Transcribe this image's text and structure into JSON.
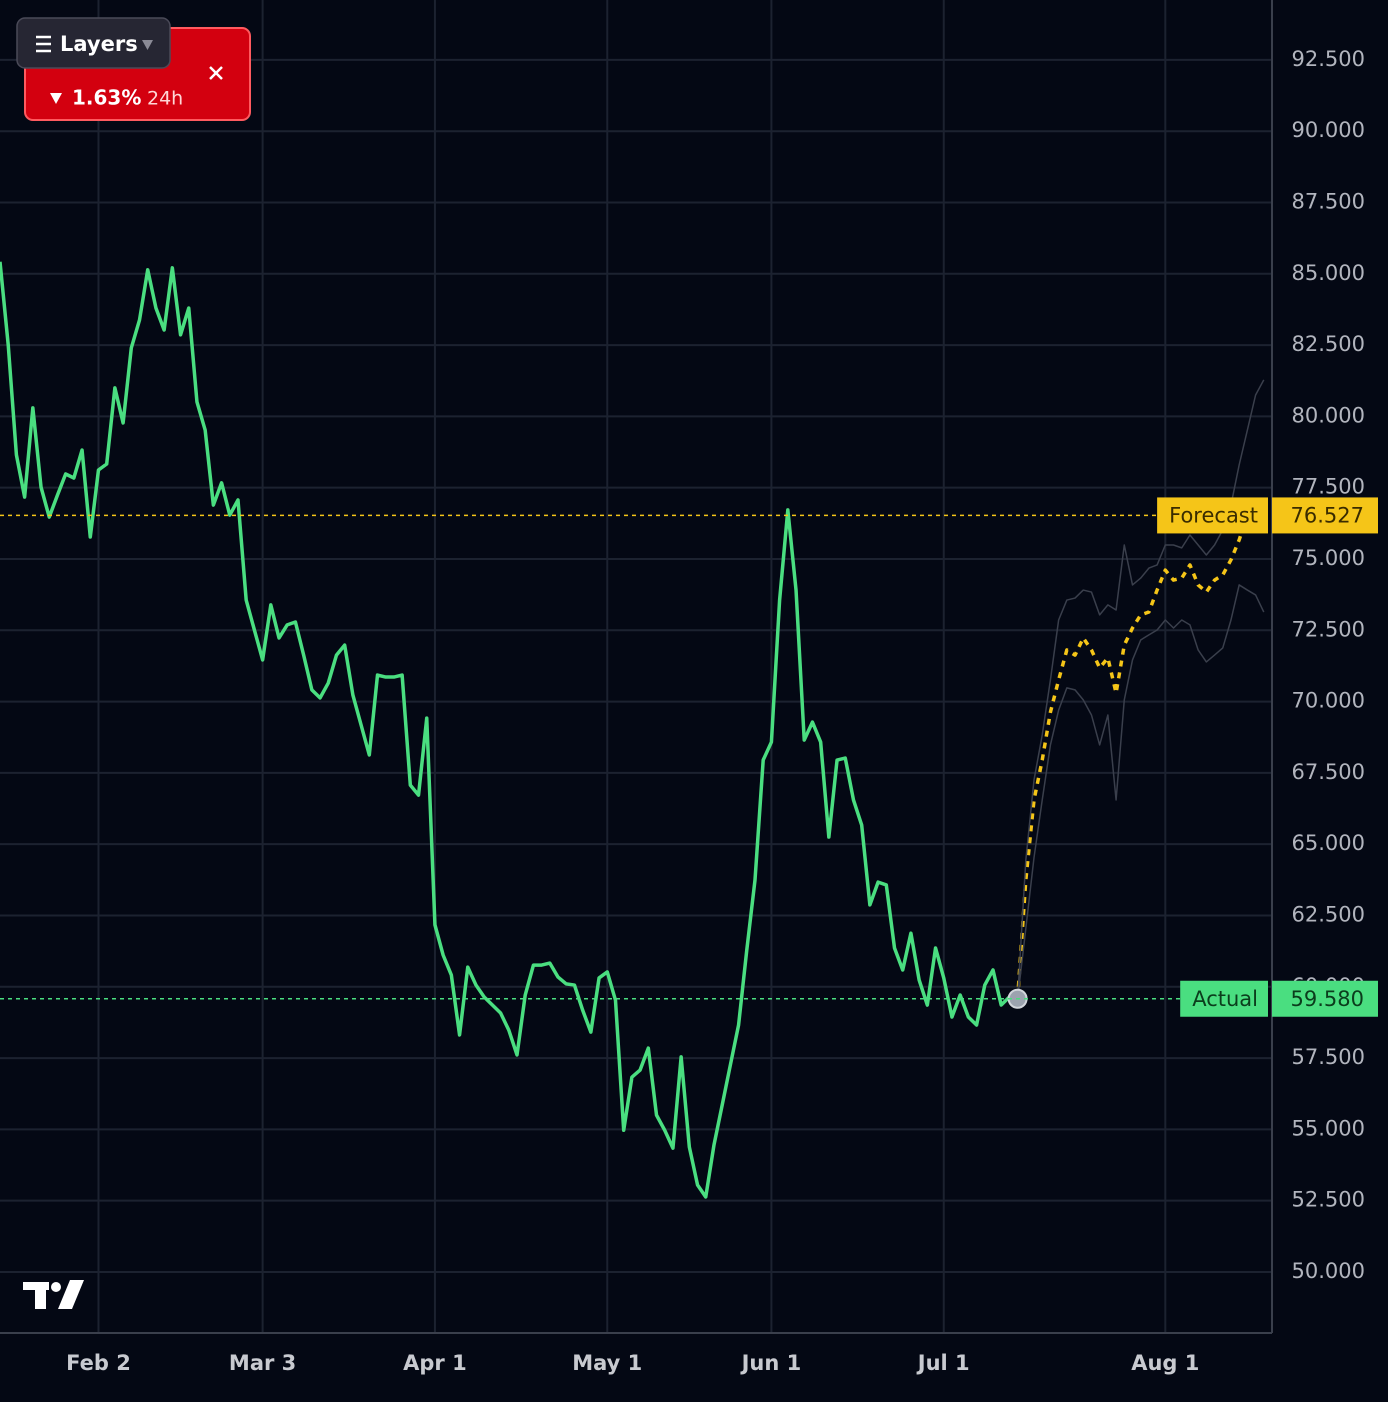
{
  "chart_data": {
    "type": "line",
    "xlim": [
      0,
      155
    ],
    "xticks": [
      {
        "value": 12,
        "label": "Feb 2"
      },
      {
        "value": 32,
        "label": "Mar 3"
      },
      {
        "value": 53,
        "label": "Apr 1"
      },
      {
        "value": 74,
        "label": "May 1"
      },
      {
        "value": 94,
        "label": "Jun 1"
      },
      {
        "value": 115,
        "label": "Jul 1"
      },
      {
        "value": 142,
        "label": "Aug 1"
      }
    ],
    "ylim": [
      47.86,
      94.6
    ],
    "yticks": [
      {
        "value": 50,
        "label": "50.000"
      },
      {
        "value": 52.5,
        "label": "52.500"
      },
      {
        "value": 55,
        "label": "55.000"
      },
      {
        "value": 57.5,
        "label": "57.500"
      },
      {
        "value": 60,
        "label": "60.000"
      },
      {
        "value": 62.5,
        "label": "62.500"
      },
      {
        "value": 65,
        "label": "65.000"
      },
      {
        "value": 67.5,
        "label": "67.500"
      },
      {
        "value": 70,
        "label": "70.000"
      },
      {
        "value": 72.5,
        "label": "72.500"
      },
      {
        "value": 75,
        "label": "75.000"
      },
      {
        "value": 77.5,
        "label": "77.500"
      },
      {
        "value": 80,
        "label": "80.000"
      },
      {
        "value": 82.5,
        "label": "82.500"
      },
      {
        "value": 85,
        "label": "85.000"
      },
      {
        "value": 87.5,
        "label": "87.500"
      },
      {
        "value": 90,
        "label": "90.000"
      },
      {
        "value": 92.5,
        "label": "92.500"
      }
    ],
    "grid": true,
    "series": [
      {
        "name": "Actual",
        "color": "#4ade80",
        "style": "solid",
        "values": [
          85.42,
          82.51,
          78.65,
          77.17,
          80.3,
          77.52,
          76.47,
          77.24,
          77.98,
          77.84,
          78.82,
          75.77,
          78.12,
          78.33,
          81.0,
          79.77,
          82.4,
          83.38,
          85.14,
          83.8,
          83.03,
          85.21,
          82.86,
          83.8,
          80.51,
          79.52,
          76.89,
          77.67,
          76.54,
          77.07,
          73.56,
          72.51,
          71.46,
          73.39,
          72.23,
          72.69,
          72.79,
          71.63,
          70.41,
          70.13,
          70.65,
          71.63,
          71.98,
          70.23,
          69.18,
          68.13,
          70.93,
          70.86,
          70.86,
          70.93,
          67.07,
          66.72,
          69.42,
          62.17,
          61.11,
          60.41,
          58.31,
          60.69,
          60.06,
          59.64,
          59.36,
          59.08,
          58.48,
          57.61,
          59.71,
          60.76,
          60.76,
          60.83,
          60.34,
          60.1,
          60.06,
          59.18,
          58.41,
          60.31,
          60.52,
          59.53,
          54.97,
          56.83,
          57.08,
          57.85,
          55.5,
          54.97,
          54.34,
          57.54,
          54.38,
          53.05,
          52.63,
          54.45,
          55.85,
          57.26,
          58.66,
          61.29,
          63.74,
          67.95,
          68.58,
          73.56,
          76.72,
          73.91,
          68.65,
          69.28,
          68.58,
          65.25,
          67.95,
          68.02,
          66.55,
          65.67,
          62.87,
          63.67,
          63.57,
          61.36,
          60.59,
          61.88,
          60.24,
          59.36,
          61.36,
          60.31,
          58.94,
          59.71,
          58.94,
          58.66,
          60.06,
          60.59,
          59.36,
          59.64,
          59.58
        ]
      },
      {
        "name": "Forecast",
        "color": "#f5c518",
        "style": "dotted",
        "x": [
          124,
          125,
          126,
          127,
          128,
          129,
          130,
          131,
          132,
          133,
          134,
          135,
          136,
          137,
          138,
          139,
          140,
          141,
          142,
          143,
          144,
          145,
          146,
          147,
          148,
          149,
          150,
          151,
          152
        ],
        "values": [
          59.58,
          63.74,
          66.55,
          67.95,
          69.63,
          70.76,
          71.81,
          71.63,
          72.23,
          71.81,
          71.18,
          71.53,
          70.3,
          71.98,
          72.58,
          73.04,
          73.14,
          73.91,
          74.61,
          74.26,
          74.33,
          74.79,
          74.09,
          73.84,
          74.26,
          74.44,
          74.97,
          75.67,
          76.527
        ]
      },
      {
        "color": "#3a3f4c",
        "style": "thin",
        "x": [
          124,
          125,
          126,
          127,
          128,
          129,
          130,
          131,
          132,
          133,
          134,
          135,
          136,
          137,
          138,
          139,
          140,
          141,
          142,
          143,
          144,
          145,
          146,
          147,
          148,
          149,
          150,
          151,
          152,
          153,
          154
        ],
        "values": [
          59.58,
          64.44,
          67.25,
          68.83,
          70.76,
          72.86,
          73.56,
          73.63,
          73.91,
          73.84,
          73.04,
          73.39,
          73.21,
          75.49,
          74.09,
          74.33,
          74.68,
          74.79,
          75.49,
          75.49,
          75.39,
          75.84,
          75.49,
          75.14,
          75.49,
          76.02,
          76.89,
          78.3,
          79.52,
          80.75,
          81.28
        ]
      },
      {
        "color": "#3a3f4c",
        "style": "thin",
        "x": [
          124,
          125,
          126,
          127,
          128,
          129,
          130,
          131,
          132,
          133,
          134,
          135,
          136,
          137,
          138,
          139,
          140,
          141,
          142,
          143,
          144,
          145,
          146,
          147,
          148,
          149,
          150,
          151,
          152,
          153,
          154
        ],
        "values": [
          59.58,
          62.04,
          64.53,
          66.55,
          68.48,
          69.7,
          70.48,
          70.41,
          70.06,
          69.53,
          68.48,
          69.53,
          66.55,
          70.06,
          71.46,
          72.16,
          72.34,
          72.51,
          72.86,
          72.58,
          72.86,
          72.69,
          71.81,
          71.39,
          71.63,
          71.88,
          72.86,
          74.09,
          73.91,
          73.74,
          73.14
        ]
      }
    ],
    "price_lines": [
      {
        "name": "Forecast",
        "value": 76.527,
        "color": "#f5c518",
        "text_color": "#3a2c00"
      },
      {
        "name": "Actual",
        "value": 59.58,
        "label": "59.580",
        "color": "#4ade80",
        "text_color": "#0b3d1c"
      }
    ]
  },
  "widget": {
    "button": "Layers",
    "change": "1.63%",
    "period": "24h"
  }
}
